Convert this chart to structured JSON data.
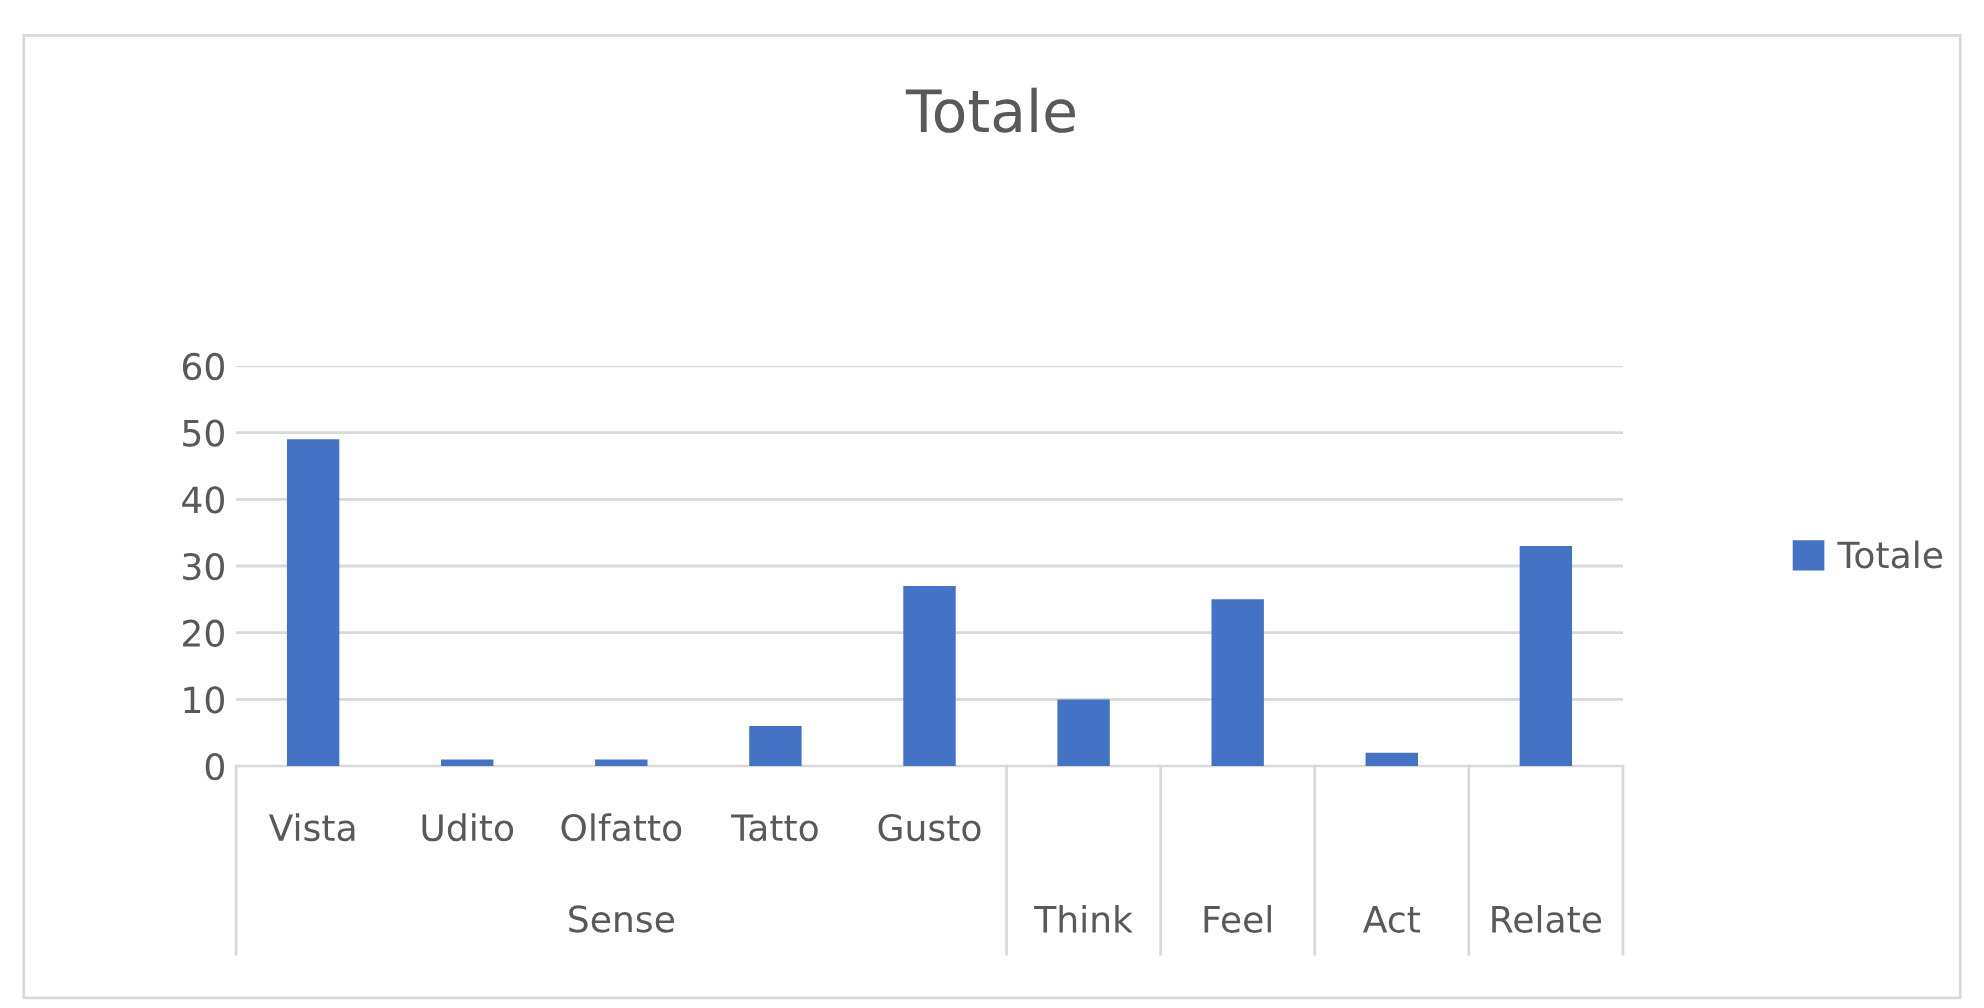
{
  "chart_data": {
    "type": "bar",
    "title": "Totale",
    "categories": [
      "Vista",
      "Udito",
      "Olfatto",
      "Tatto",
      "Gusto",
      "Think",
      "Feel",
      "Act",
      "Relate"
    ],
    "series": [
      {
        "name": "Totale",
        "color": "#4472c4",
        "values": [
          49,
          1,
          1,
          6,
          27,
          10,
          25,
          2,
          33
        ]
      }
    ],
    "ylim": [
      0,
      60
    ],
    "yticks": [
      0,
      10,
      20,
      30,
      40,
      50,
      60
    ],
    "grid": "y",
    "legend": "right",
    "annotations": [
      "Sense"
    ]
  }
}
